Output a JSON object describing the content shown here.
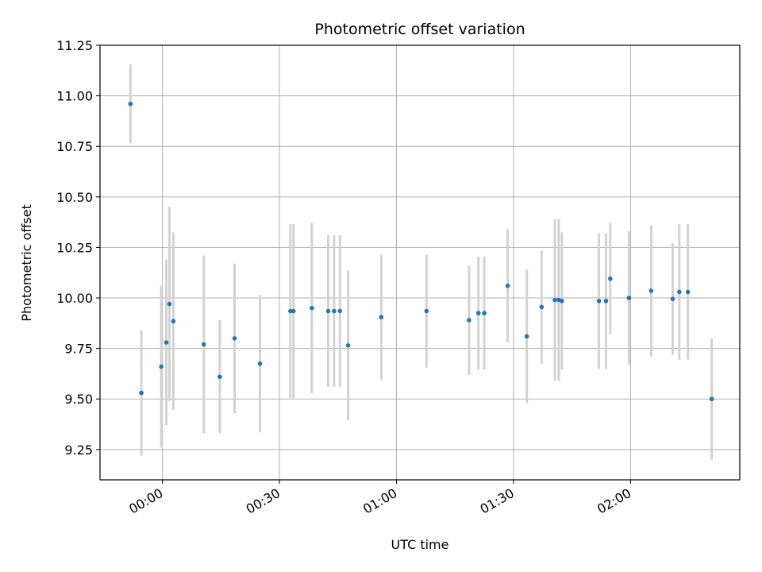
{
  "chart_data": {
    "type": "scatter",
    "title": "Photometric offset variation",
    "xlabel": "UTC time",
    "ylabel": "Photometric offset",
    "grid": true,
    "x_unit": "minutes after 00:00 UTC",
    "xlim": [
      -16,
      148
    ],
    "ylim": [
      9.1,
      11.25
    ],
    "xticks": [
      {
        "value": 0,
        "label": "00:00"
      },
      {
        "value": 30,
        "label": "00:30"
      },
      {
        "value": 60,
        "label": "01:00"
      },
      {
        "value": 90,
        "label": "01:30"
      },
      {
        "value": 120,
        "label": "02:00"
      }
    ],
    "yticks": [
      {
        "value": 9.25,
        "label": "9.25"
      },
      {
        "value": 9.5,
        "label": "9.50"
      },
      {
        "value": 9.75,
        "label": "9.75"
      },
      {
        "value": 10.0,
        "label": "10.00"
      },
      {
        "value": 10.25,
        "label": "10.25"
      },
      {
        "value": 10.5,
        "label": "10.50"
      },
      {
        "value": 10.75,
        "label": "10.75"
      },
      {
        "value": 11.0,
        "label": "11.00"
      },
      {
        "value": 11.25,
        "label": "11.25"
      }
    ],
    "marker_color": "#1f77b4",
    "errorbar_color": "#d3d3d3",
    "series": [
      {
        "name": "offset",
        "points": [
          {
            "x": -8.2,
            "y": 10.96,
            "err": 0.195
          },
          {
            "x": -5.4,
            "y": 9.53,
            "err": 0.31
          },
          {
            "x": -0.3,
            "y": 9.66,
            "err": 0.4
          },
          {
            "x": 1.0,
            "y": 9.78,
            "err": 0.41
          },
          {
            "x": 1.8,
            "y": 9.97,
            "err": 0.48
          },
          {
            "x": 2.8,
            "y": 9.885,
            "err": 0.44
          },
          {
            "x": 10.6,
            "y": 9.77,
            "err": 0.44
          },
          {
            "x": 14.7,
            "y": 9.61,
            "err": 0.28
          },
          {
            "x": 18.5,
            "y": 9.8,
            "err": 0.37
          },
          {
            "x": 25.0,
            "y": 9.675,
            "err": 0.34
          },
          {
            "x": 32.8,
            "y": 9.935,
            "err": 0.43
          },
          {
            "x": 33.6,
            "y": 9.935,
            "err": 0.43
          },
          {
            "x": 38.3,
            "y": 9.95,
            "err": 0.42
          },
          {
            "x": 42.5,
            "y": 9.935,
            "err": 0.375
          },
          {
            "x": 44.0,
            "y": 9.935,
            "err": 0.375
          },
          {
            "x": 45.5,
            "y": 9.935,
            "err": 0.375
          },
          {
            "x": 47.6,
            "y": 9.765,
            "err": 0.37
          },
          {
            "x": 56.1,
            "y": 9.905,
            "err": 0.31
          },
          {
            "x": 67.7,
            "y": 9.935,
            "err": 0.28
          },
          {
            "x": 78.6,
            "y": 9.89,
            "err": 0.27
          },
          {
            "x": 81.0,
            "y": 9.925,
            "err": 0.28
          },
          {
            "x": 82.5,
            "y": 9.925,
            "err": 0.28
          },
          {
            "x": 88.5,
            "y": 10.06,
            "err": 0.28
          },
          {
            "x": 93.4,
            "y": 9.81,
            "err": 0.33
          },
          {
            "x": 97.2,
            "y": 9.955,
            "err": 0.28
          },
          {
            "x": 100.6,
            "y": 9.99,
            "err": 0.4
          },
          {
            "x": 101.6,
            "y": 9.99,
            "err": 0.4
          },
          {
            "x": 102.4,
            "y": 9.985,
            "err": 0.34
          },
          {
            "x": 111.9,
            "y": 9.985,
            "err": 0.335
          },
          {
            "x": 113.7,
            "y": 9.985,
            "err": 0.335
          },
          {
            "x": 114.8,
            "y": 10.095,
            "err": 0.275
          },
          {
            "x": 119.6,
            "y": 10.0,
            "err": 0.33
          },
          {
            "x": 125.3,
            "y": 10.035,
            "err": 0.325
          },
          {
            "x": 130.8,
            "y": 9.995,
            "err": 0.275
          },
          {
            "x": 132.5,
            "y": 10.03,
            "err": 0.335
          },
          {
            "x": 134.7,
            "y": 10.03,
            "err": 0.335
          },
          {
            "x": 140.8,
            "y": 9.5,
            "err": 0.3
          }
        ]
      }
    ]
  }
}
